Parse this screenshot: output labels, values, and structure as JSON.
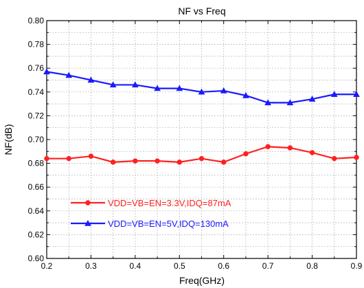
{
  "chart_data": {
    "type": "line",
    "title": "NF vs Freq",
    "xlabel": "Freq(GHz)",
    "ylabel": "NF(dB)",
    "xlim": [
      0.2,
      0.9
    ],
    "ylim": [
      0.6,
      0.8
    ],
    "x_ticks": [
      "0.2",
      "0.3",
      "0.4",
      "0.5",
      "0.6",
      "0.7",
      "0.8",
      "0.9"
    ],
    "y_ticks": [
      "0.60",
      "0.62",
      "0.64",
      "0.66",
      "0.68",
      "0.70",
      "0.72",
      "0.74",
      "0.76",
      "0.78",
      "0.80"
    ],
    "grid": true,
    "legend_position": "bottom-left",
    "x": [
      0.2,
      0.25,
      0.3,
      0.35,
      0.4,
      0.45,
      0.5,
      0.55,
      0.6,
      0.65,
      0.7,
      0.75,
      0.8,
      0.85,
      0.9
    ],
    "series": [
      {
        "name": "VDD=VB=EN=3.3V,IDQ=87mA",
        "color": "#ff2020",
        "marker": "circle",
        "values": [
          0.684,
          0.684,
          0.686,
          0.681,
          0.682,
          0.682,
          0.681,
          0.684,
          0.681,
          0.688,
          0.694,
          0.693,
          0.689,
          0.684,
          0.685
        ]
      },
      {
        "name": "VDD=VB=EN=5V,IDQ=130mA",
        "color": "#1a1aff",
        "marker": "triangle",
        "values": [
          0.757,
          0.754,
          0.75,
          0.746,
          0.746,
          0.743,
          0.743,
          0.74,
          0.741,
          0.737,
          0.731,
          0.731,
          0.734,
          0.738,
          0.738
        ]
      }
    ]
  }
}
